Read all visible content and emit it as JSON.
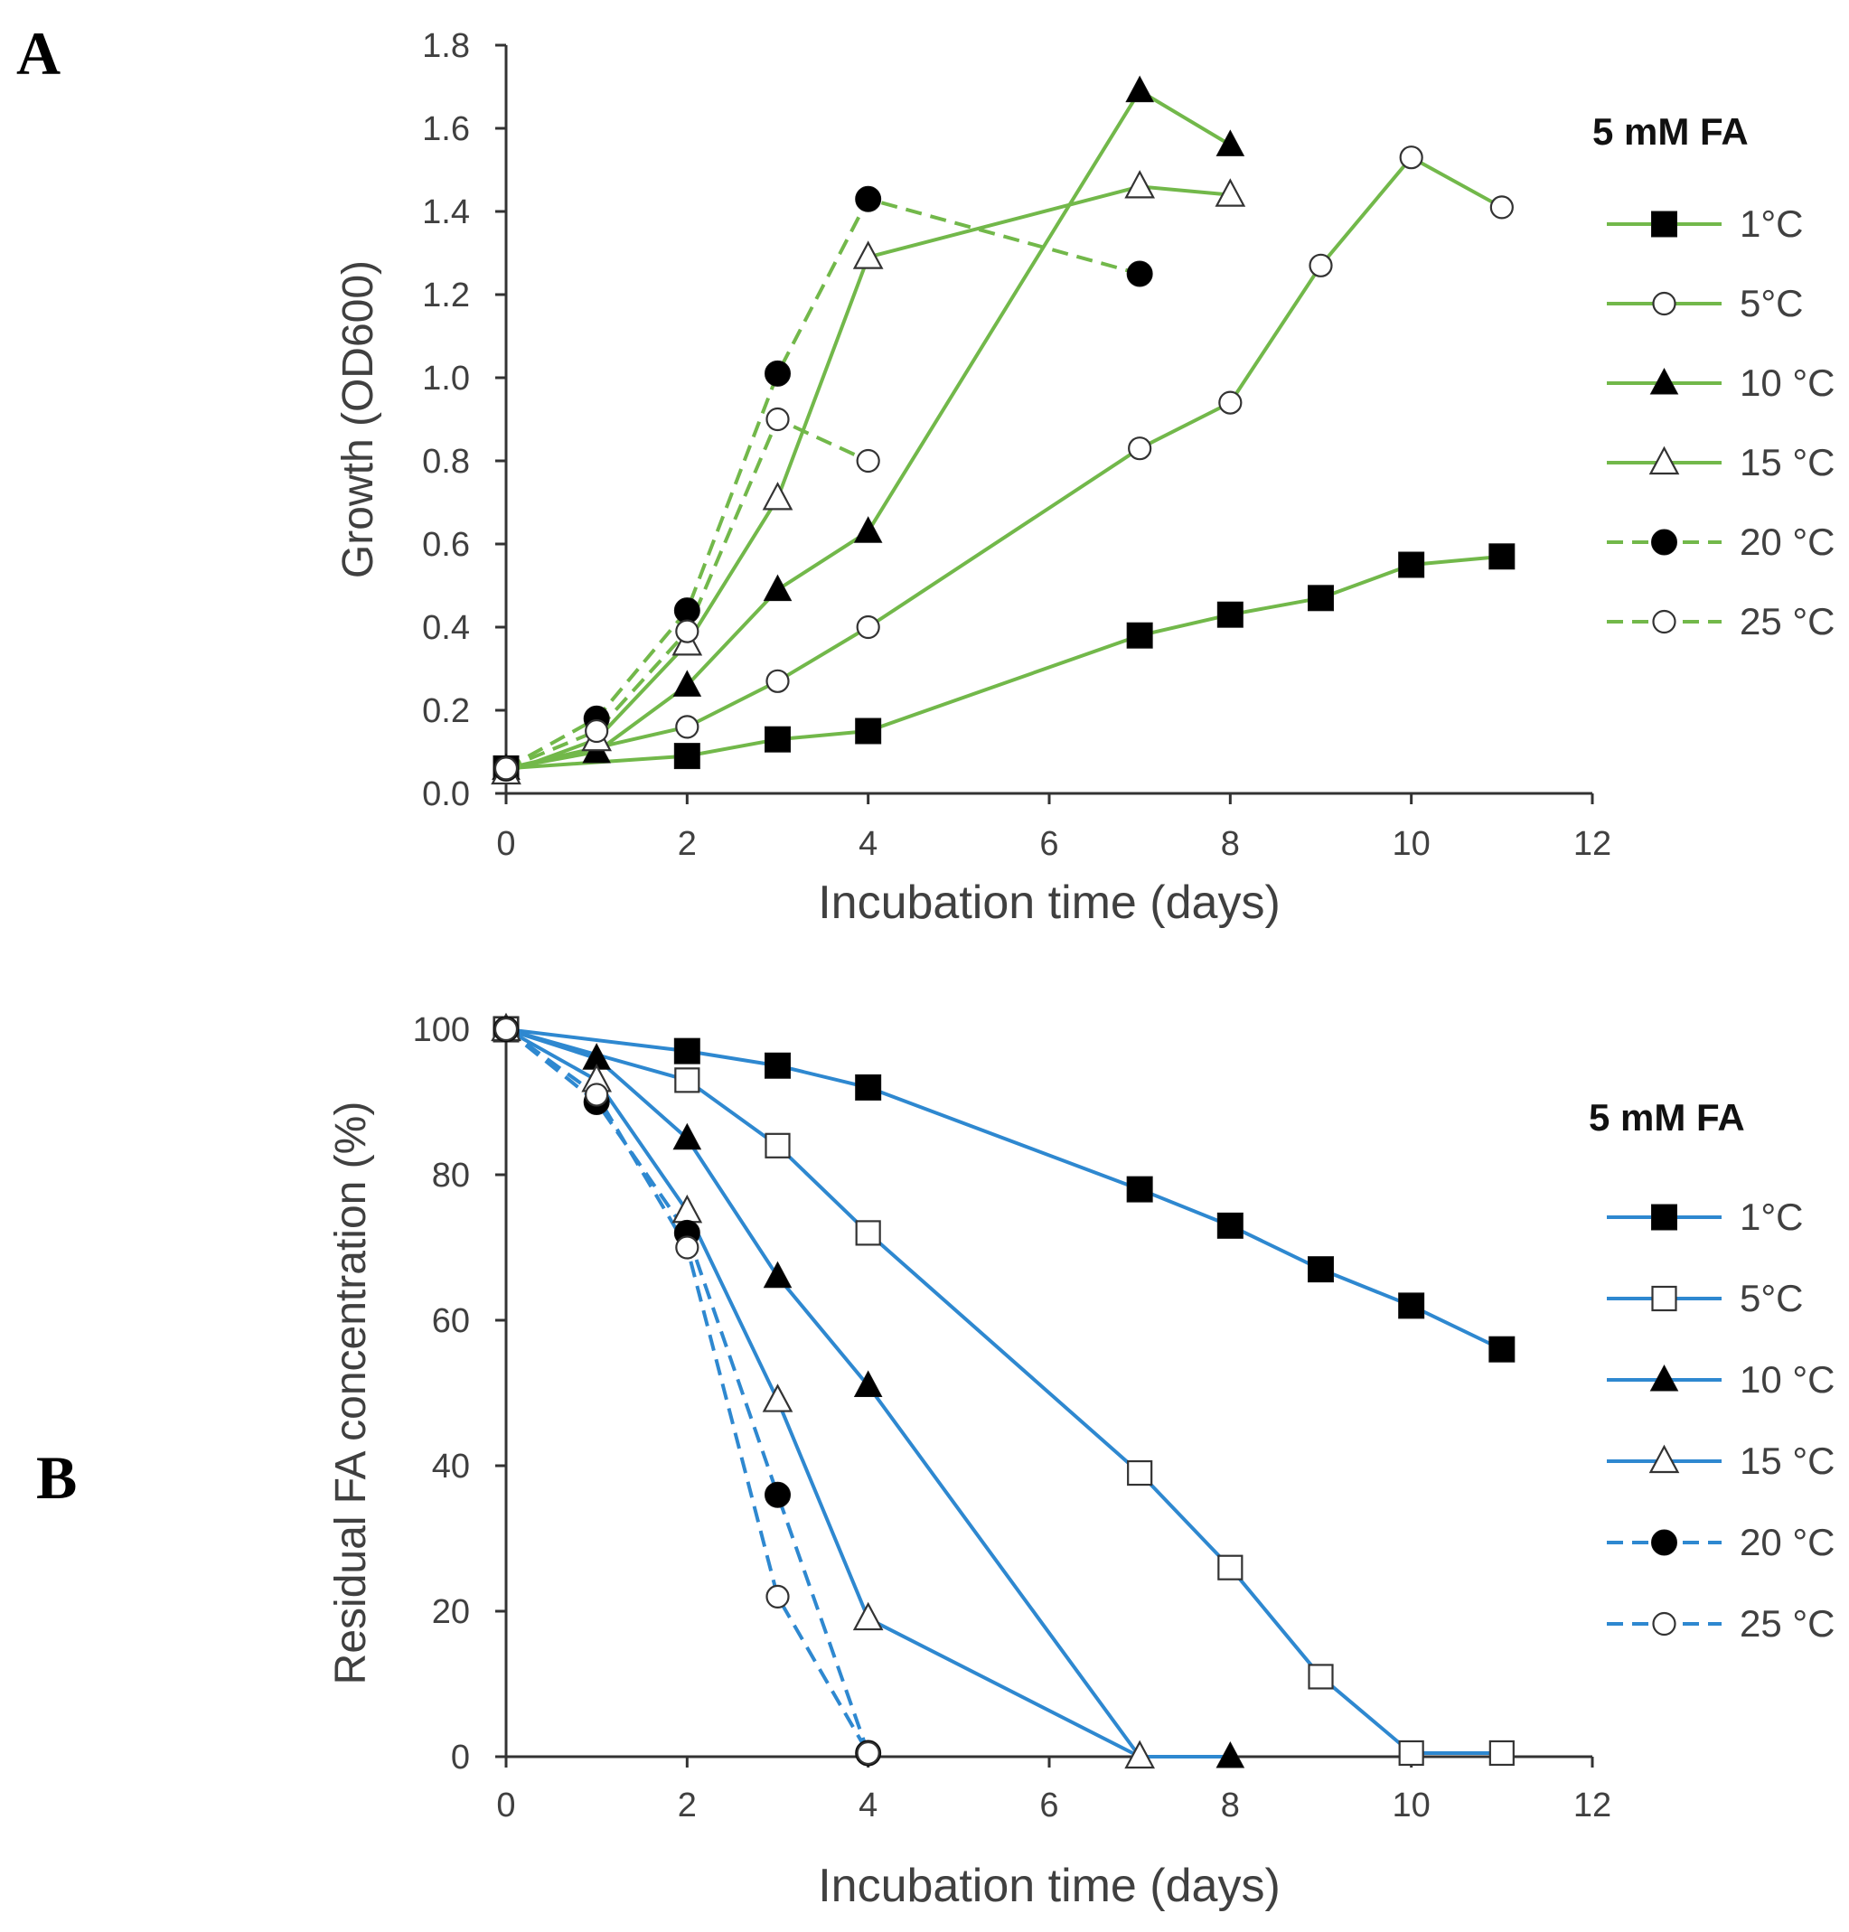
{
  "panels": [
    {
      "label": "A",
      "legend_title": "5 mM FA",
      "color": "#72b84a"
    },
    {
      "label": "B",
      "legend_title": "5 mM FA",
      "color": "#2e88d0"
    }
  ],
  "chart_data": [
    {
      "type": "line",
      "title": "5 mM FA",
      "xlabel": "Incubation  time (days)",
      "ylabel": "Growth (OD600)",
      "xlim": [
        0,
        12
      ],
      "ylim": [
        0,
        1.8
      ],
      "xticks": [
        "0",
        "2",
        "4",
        "6",
        "8",
        "10",
        "12"
      ],
      "yticks": [
        "0.0",
        "0.2",
        "0.4",
        "0.6",
        "0.8",
        "1.0",
        "1.2",
        "1.4",
        "1.6",
        "1.8"
      ],
      "legend_position": "right",
      "series": [
        {
          "name": "1°C",
          "marker": "square-filled",
          "dash": "solid",
          "x": [
            0,
            2,
            3,
            4,
            7,
            8,
            9,
            10,
            11
          ],
          "y": [
            0.06,
            0.09,
            0.13,
            0.15,
            0.38,
            0.43,
            0.47,
            0.55,
            0.57
          ]
        },
        {
          "name": "5°C",
          "marker": "circle-open",
          "dash": "solid",
          "x": [
            0,
            2,
            3,
            4,
            7,
            8,
            9,
            10,
            11
          ],
          "y": [
            0.06,
            0.16,
            0.27,
            0.4,
            0.83,
            0.94,
            1.27,
            1.53,
            1.41
          ]
        },
        {
          "name": "10 °C",
          "marker": "triangle-filled",
          "dash": "solid",
          "x": [
            0,
            1,
            2,
            3,
            4,
            7,
            8
          ],
          "y": [
            0.06,
            0.1,
            0.26,
            0.49,
            0.63,
            1.69,
            1.56
          ]
        },
        {
          "name": "15 °C",
          "marker": "triangle-open",
          "dash": "solid",
          "x": [
            0,
            1,
            2,
            3,
            4,
            7,
            8
          ],
          "y": [
            0.05,
            0.13,
            0.36,
            0.71,
            1.29,
            1.46,
            1.44
          ]
        },
        {
          "name": "20 °C",
          "marker": "circle-filled",
          "dash": "dashed",
          "x": [
            0,
            1,
            2,
            3,
            4,
            7
          ],
          "y": [
            0.06,
            0.18,
            0.44,
            1.01,
            1.43,
            1.25
          ]
        },
        {
          "name": "25 °C",
          "marker": "circle-open",
          "dash": "dashed",
          "x": [
            0,
            1,
            2,
            3,
            4
          ],
          "y": [
            0.06,
            0.15,
            0.39,
            0.9,
            0.8
          ]
        }
      ]
    },
    {
      "type": "line",
      "title": "5 mM FA",
      "xlabel": "Incubation  time (days)",
      "ylabel": "Residual FA concentration (%)",
      "xlim": [
        0,
        12
      ],
      "ylim": [
        0,
        100
      ],
      "xticks": [
        "0",
        "2",
        "4",
        "6",
        "8",
        "10",
        "12"
      ],
      "yticks": [
        "0",
        "20",
        "40",
        "60",
        "80",
        "100"
      ],
      "legend_position": "right",
      "series": [
        {
          "name": "1°C",
          "marker": "square-filled",
          "dash": "solid",
          "x": [
            0,
            2,
            3,
            4,
            7,
            8,
            9,
            10,
            11
          ],
          "y": [
            100,
            97,
            95,
            92,
            78,
            73,
            67,
            62,
            56
          ]
        },
        {
          "name": "5°C",
          "marker": "square-open",
          "dash": "solid",
          "x": [
            0,
            2,
            3,
            4,
            7,
            8,
            9,
            10,
            11
          ],
          "y": [
            100,
            93,
            84,
            72,
            39,
            26,
            11,
            0.5,
            0.5
          ]
        },
        {
          "name": "10 °C",
          "marker": "triangle-filled",
          "dash": "solid",
          "x": [
            0,
            1,
            2,
            3,
            4,
            7,
            8
          ],
          "y": [
            100,
            96,
            85,
            66,
            51,
            0,
            0
          ]
        },
        {
          "name": "15 °C",
          "marker": "triangle-open",
          "dash": "solid",
          "x": [
            0,
            1,
            2,
            3,
            4,
            7
          ],
          "y": [
            100,
            93,
            75,
            49,
            19,
            0
          ]
        },
        {
          "name": "20 °C",
          "marker": "circle-filled",
          "dash": "dashed",
          "x": [
            0,
            1,
            2,
            3,
            4
          ],
          "y": [
            100,
            90,
            72,
            36,
            0.5
          ]
        },
        {
          "name": "25 °C",
          "marker": "circle-open",
          "dash": "dashed",
          "x": [
            0,
            1,
            2,
            3,
            4
          ],
          "y": [
            100,
            91,
            70,
            22,
            0.5
          ]
        }
      ]
    }
  ]
}
